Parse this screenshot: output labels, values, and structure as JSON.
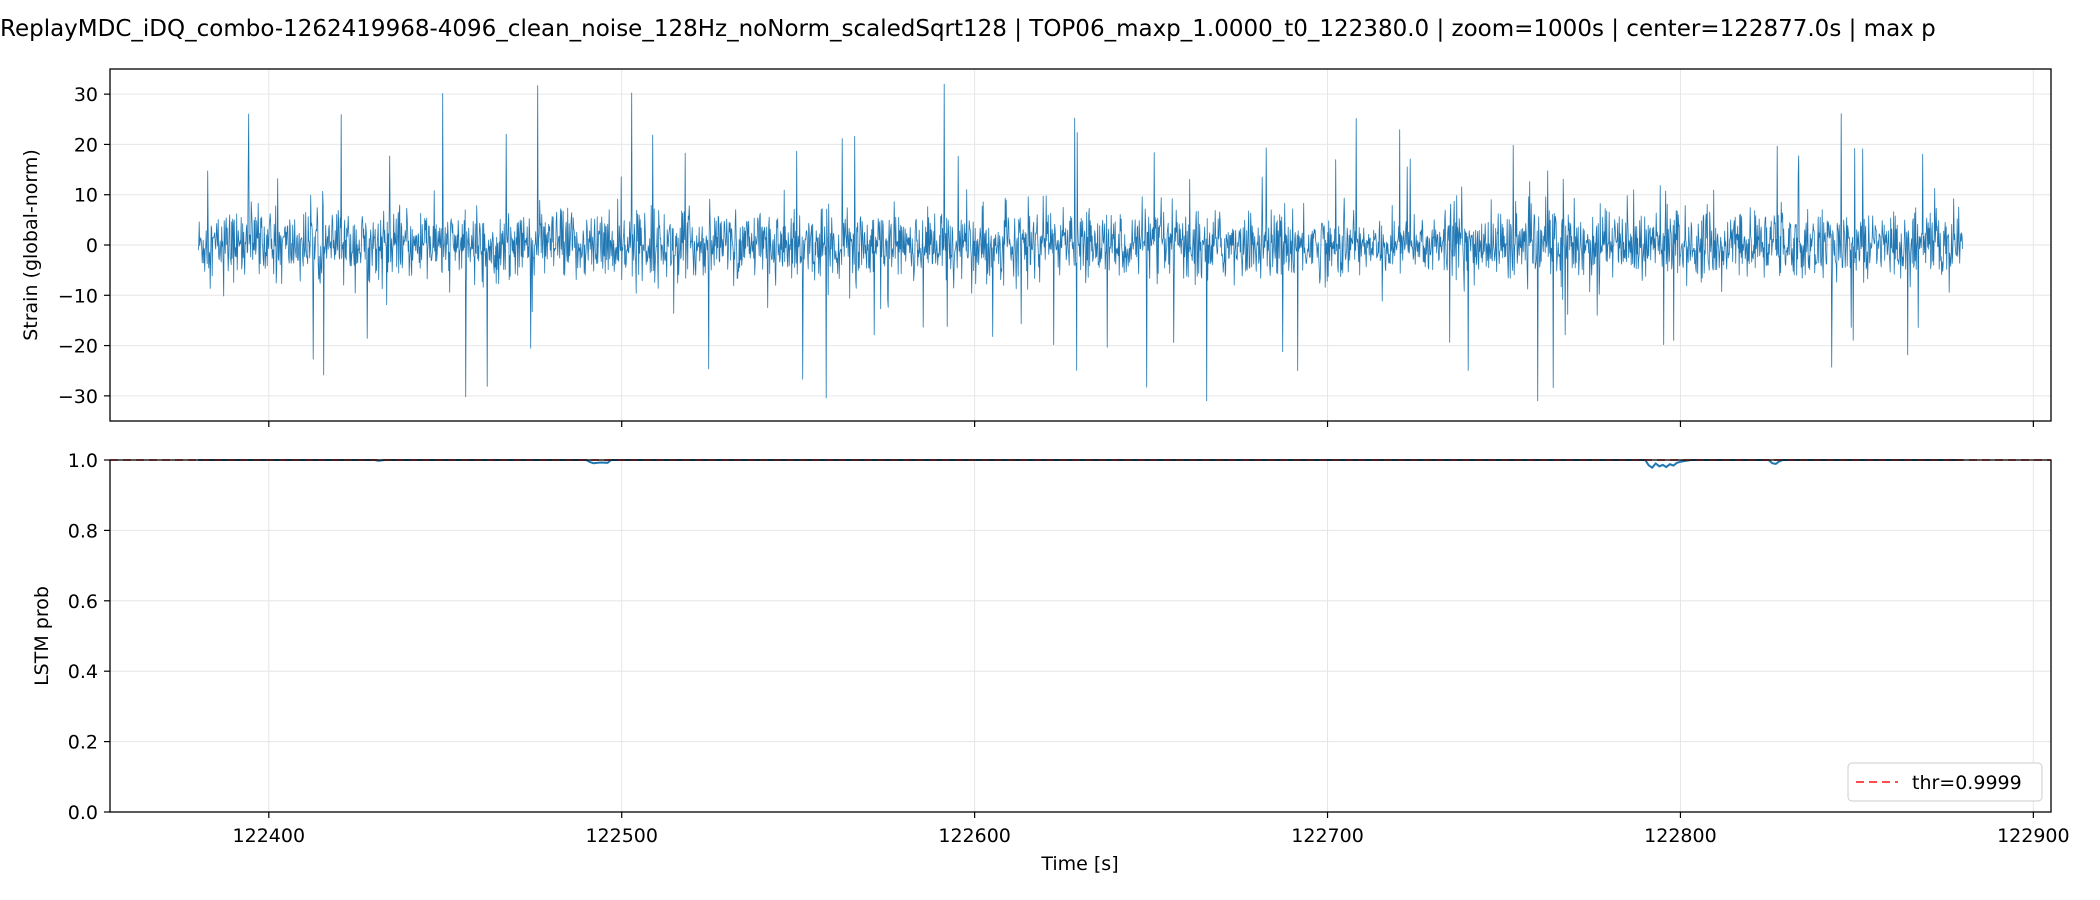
{
  "chart_data": [
    {
      "type": "line",
      "title": "ReplayMDC_iDQ_combo-1262419968-4096_clean_noise_128Hz_noNorm_scaledSqrt128 | TOP06_maxp_1.0000_t0_122380.0 | zoom=1000s | center=122877.0s | max p",
      "xlabel": "",
      "ylabel": "Strain (global-norm)",
      "xlim": [
        122355,
        122905
      ],
      "ylim": [
        -35,
        35
      ],
      "yticks": [
        30,
        20,
        10,
        0,
        -10,
        -20,
        -30
      ],
      "yticklabels": [
        "30",
        "20",
        "10",
        "0",
        "−10",
        "−20",
        "−30"
      ],
      "xticks": [
        122400,
        122500,
        122600,
        122700,
        122800,
        122900
      ],
      "grid": true,
      "series": [
        {
          "color": "#1f77b4",
          "x_range": [
            122380,
            122880
          ],
          "typical_amplitude": 6,
          "envelope_max": 32,
          "envelope_min": -31
        }
      ]
    },
    {
      "type": "line",
      "xlabel": "Time [s]",
      "ylabel": "LSTM prob",
      "xlim": [
        122355,
        122905
      ],
      "ylim": [
        0.0,
        1.0
      ],
      "yticks": [
        1.0,
        0.8,
        0.6,
        0.4,
        0.2,
        0.0
      ],
      "yticklabels": [
        "1.0",
        "0.8",
        "0.6",
        "0.4",
        "0.2",
        "0.0"
      ],
      "xticks": [
        122400,
        122500,
        122600,
        122700,
        122800,
        122900
      ],
      "xticklabels": [
        "122400",
        "122500",
        "122600",
        "122700",
        "122800",
        "122900"
      ],
      "grid": true,
      "legend_position": "lower-right",
      "series": [
        {
          "color": "#1f77b4",
          "x": [
            122380,
            122430,
            122431,
            122432,
            122433,
            122490,
            122491,
            122492,
            122494,
            122496,
            122497,
            122790,
            122791,
            122792,
            122793,
            122794,
            122795,
            122796,
            122797,
            122798,
            122799,
            122800,
            122801,
            122803,
            122825,
            122826,
            122827,
            122828,
            122829,
            122880
          ],
          "y": [
            1.0,
            1.0,
            0.998,
            0.999,
            1.0,
            1.0,
            0.994,
            0.991,
            0.993,
            0.992,
            1.0,
            1.0,
            0.985,
            0.978,
            0.99,
            0.982,
            0.986,
            0.98,
            0.988,
            0.984,
            0.992,
            0.995,
            0.997,
            1.0,
            1.0,
            0.991,
            0.989,
            0.996,
            1.0,
            1.0
          ]
        },
        {
          "name": "thr=0.9999",
          "color": "#ff4d4d",
          "style": "dashed",
          "constant_y": 0.9999
        }
      ]
    }
  ]
}
